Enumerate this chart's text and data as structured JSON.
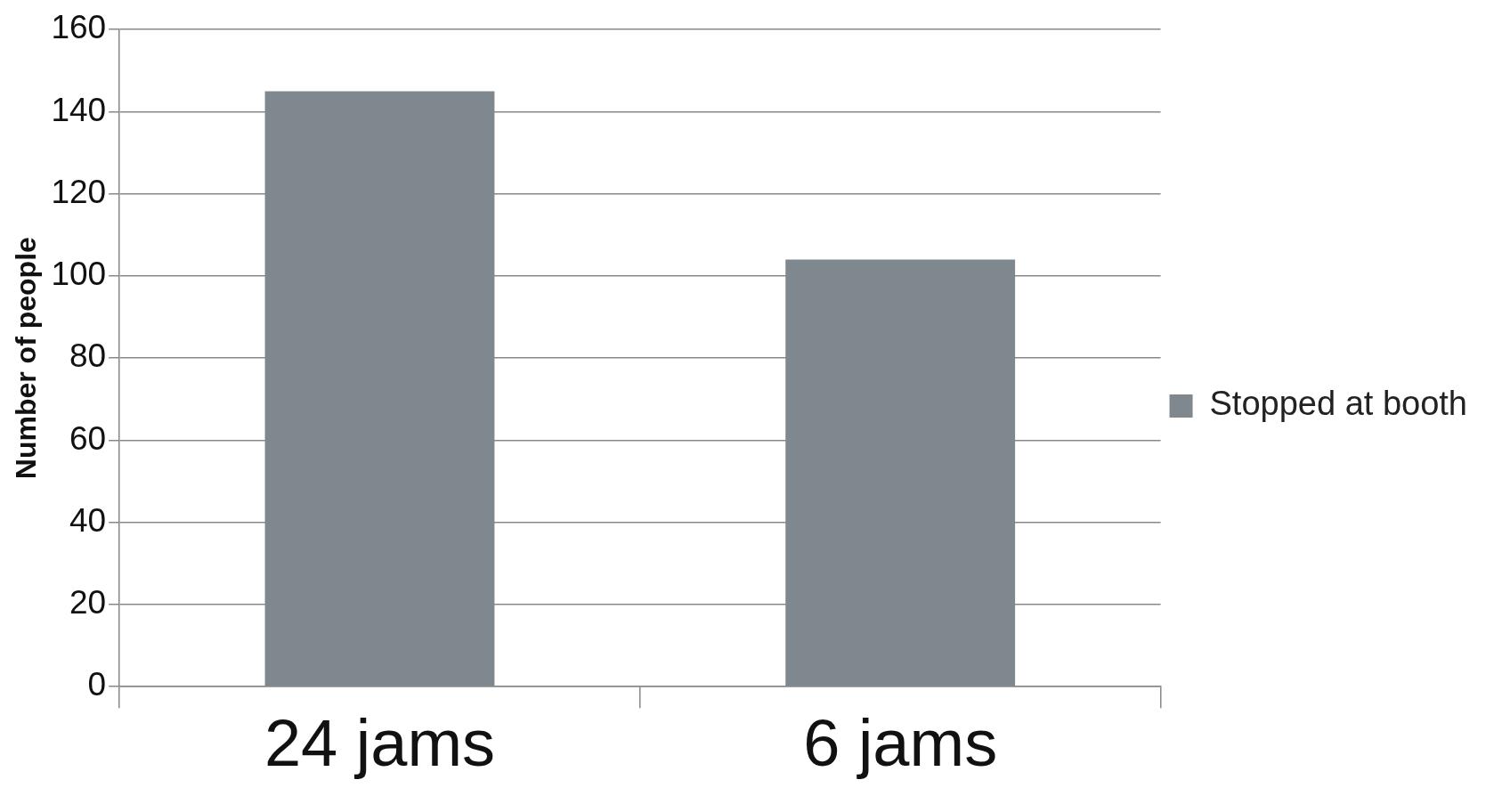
{
  "chart_data": {
    "type": "bar",
    "ylabel": "Number of people",
    "categories": [
      "24 jams",
      "6 jams"
    ],
    "series": [
      {
        "name": "Stopped at booth",
        "color": "#7f888e",
        "values": [
          145,
          104
        ]
      }
    ],
    "ylim": [
      0,
      160
    ],
    "yticks": [
      0,
      20,
      40,
      60,
      80,
      100,
      120,
      140,
      160
    ],
    "grid": "y",
    "legend": "right"
  }
}
